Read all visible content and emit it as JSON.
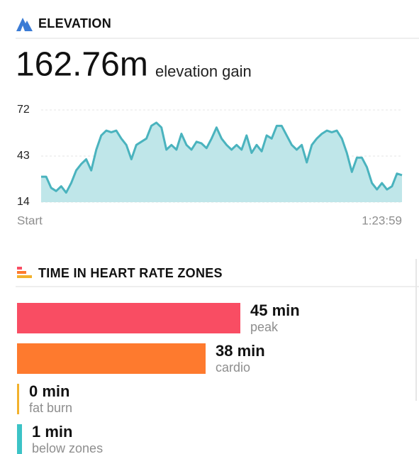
{
  "elevation": {
    "title": "ELEVATION",
    "gain_value": "162.76m",
    "gain_label": "elevation gain",
    "chart": {
      "type": "area",
      "x_labels": [
        "Start",
        "1:23:59"
      ],
      "values": [
        30,
        30,
        23,
        21,
        24,
        20,
        26,
        34,
        38,
        41,
        34,
        47,
        56,
        59,
        58,
        59,
        54,
        50,
        41,
        50,
        52,
        54,
        62,
        64,
        61,
        47,
        50,
        47,
        57,
        50,
        47,
        52,
        51,
        48,
        54,
        61,
        54,
        50,
        47,
        50,
        47,
        56,
        45,
        50,
        46,
        56,
        54,
        62,
        62,
        56,
        50,
        47,
        50,
        39,
        50,
        54,
        57,
        59,
        58,
        59,
        54,
        45,
        33,
        42,
        42,
        36,
        26,
        22,
        26,
        22,
        24,
        32,
        31
      ],
      "ylim": [
        14,
        72
      ],
      "yticks": [
        14,
        43,
        72
      ],
      "grid": true,
      "color": "#4ab3be",
      "fill": "#bfe6e9"
    }
  },
  "heart_rate_zones": {
    "title": "TIME IN HEART RATE ZONES",
    "chart": {
      "type": "hbar",
      "categories": [
        "peak",
        "cardio",
        "fat burn",
        "below zones"
      ],
      "values": [
        45,
        38,
        0,
        1
      ],
      "value_labels": [
        "45 min",
        "38 min",
        "0 min",
        "1 min"
      ],
      "colors": [
        "#f94d63",
        "#fe7a2e",
        "#f2b12c",
        "#3cc3c6"
      ]
    }
  }
}
